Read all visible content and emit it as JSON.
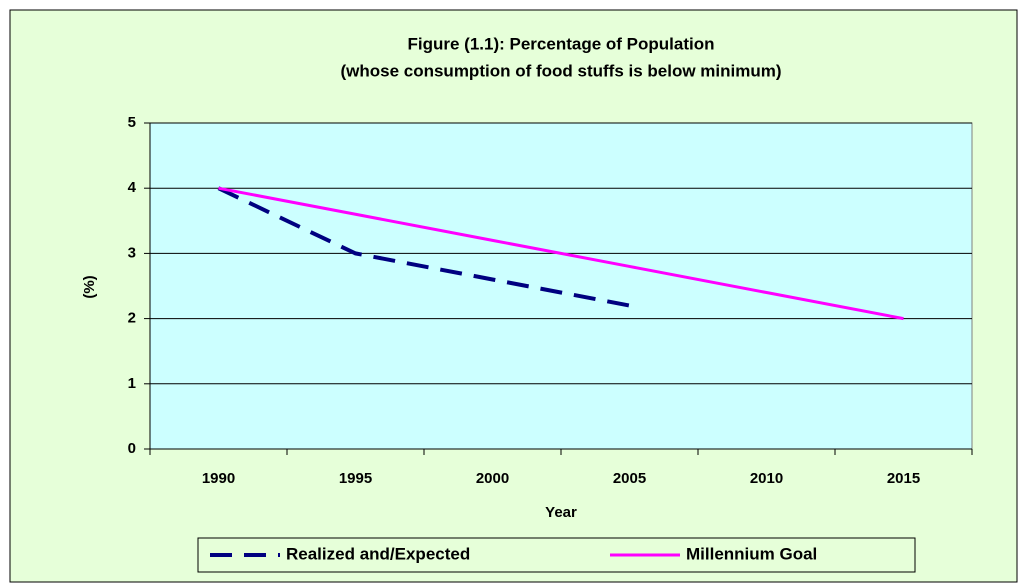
{
  "chart_data": {
    "type": "line",
    "title": [
      "Figure (1.1): Percentage of Population",
      "(whose consumption of food stuffs is below minimum)"
    ],
    "x_label": "Year",
    "y_label": "(%)",
    "categories": [
      "1990",
      "1995",
      "2000",
      "2005",
      "2010",
      "2015"
    ],
    "series": [
      {
        "name": "Realized and/Expected",
        "color": "#000080",
        "dashed": true,
        "values": [
          4,
          3,
          2.6,
          2.2,
          null,
          null
        ]
      },
      {
        "name": "Millennium Goal",
        "color": "#ff00ff",
        "dashed": false,
        "values": [
          4,
          3.6,
          3.2,
          2.8,
          2.4,
          2
        ]
      }
    ],
    "ylim": [
      0,
      5
    ],
    "yticks": [
      0,
      1,
      2,
      3,
      4,
      5
    ],
    "grid": true,
    "legend": "bottom"
  }
}
